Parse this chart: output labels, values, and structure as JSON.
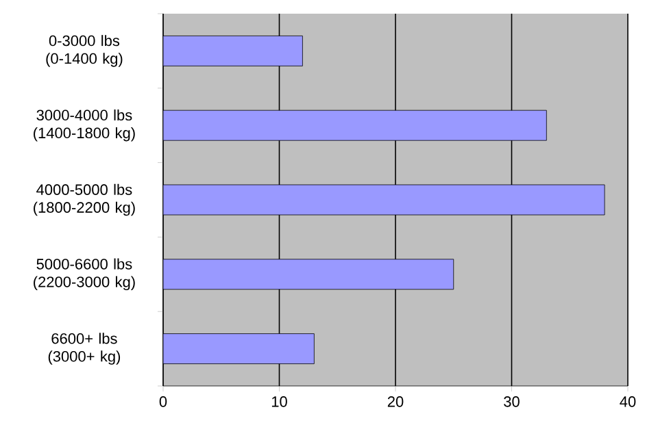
{
  "chart_data": {
    "type": "bar",
    "orientation": "horizontal",
    "categories": [
      "0-3000 lbs (0-1400 kg)",
      "3000-4000 lbs (1400-1800 kg)",
      "4000-5000 lbs (1800-2200 kg)",
      "5000-6600 lbs (2200-3000 kg)",
      "6600+ lbs (3000+ kg)"
    ],
    "values": [
      12,
      33,
      38,
      25,
      13
    ],
    "color": "#9999ff",
    "xlim": [
      0,
      40
    ],
    "xticks": [
      0,
      10,
      20,
      30,
      40
    ],
    "grid": "x"
  }
}
